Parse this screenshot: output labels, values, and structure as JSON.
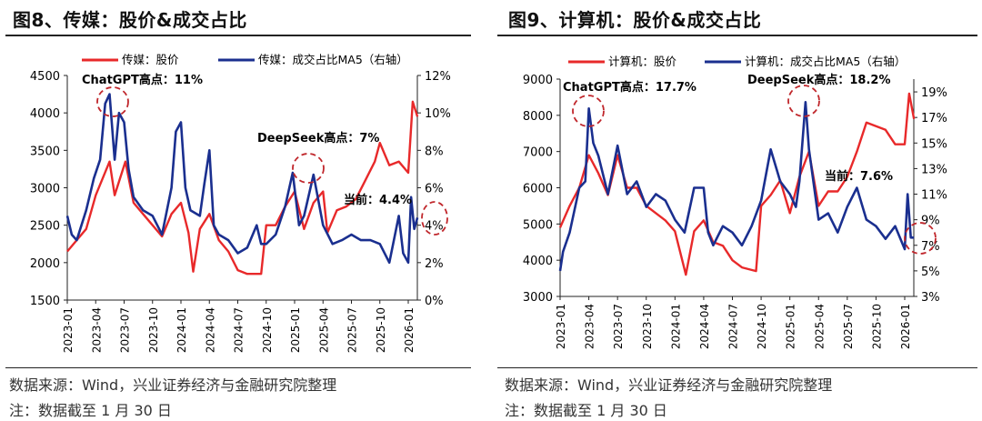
{
  "charts": [
    {
      "title": "图8、传媒：股价&成交占比",
      "source": "数据来源：Wind，兴业证券经济与金融研究院整理",
      "note": "注：数据截至 1 月 30 日"
    },
    {
      "title": "图9、计算机：股价&成交占比",
      "source": "数据来源：Wind，兴业证券经济与金融研究院整理",
      "note": "注：数据截至 1 月 30 日"
    }
  ],
  "colors": {
    "price": "#e8292a",
    "share": "#1a2f8f",
    "annotation": "#c0262b"
  },
  "chart_data": [
    {
      "type": "line",
      "x_ticks": [
        "2023-01",
        "2023-04",
        "2023-07",
        "2023-10",
        "2024-01",
        "2024-04",
        "2024-07",
        "2024-10",
        "2025-01",
        "2025-04",
        "2025-07",
        "2025-10",
        "2026-01"
      ],
      "ylim": [
        1500,
        4500
      ],
      "yticks": [
        1500,
        2000,
        2500,
        3000,
        3500,
        4000,
        4500
      ],
      "y2lim": [
        0,
        12
      ],
      "y2ticks": [
        "0%",
        "2%",
        "4%",
        "6%",
        "8%",
        "10%",
        "12%"
      ],
      "y2ticks_values": [
        0,
        2,
        4,
        6,
        8,
        10,
        12
      ],
      "grid": false,
      "legend": "top",
      "series": [
        {
          "name": "传媒：股价",
          "axis": "left",
          "color": "#e8292a",
          "x": [
            "2023-01-01",
            "2023-02-01",
            "2023-03-01",
            "2023-04-01",
            "2023-05-15",
            "2023-06-01",
            "2023-07-05",
            "2023-08-01",
            "2023-09-01",
            "2023-10-01",
            "2023-11-01",
            "2023-12-01",
            "2024-01-01",
            "2024-01-25",
            "2024-02-10",
            "2024-03-01",
            "2024-04-01",
            "2024-05-01",
            "2024-06-01",
            "2024-07-01",
            "2024-08-01",
            "2024-09-15",
            "2024-10-01",
            "2024-11-01",
            "2024-12-01",
            "2025-01-01",
            "2025-02-01",
            "2025-03-01",
            "2025-04-01",
            "2025-04-15",
            "2025-05-15",
            "2025-06-15",
            "2025-07-15",
            "2025-08-15",
            "2025-09-15",
            "2025-10-01",
            "2025-11-01",
            "2025-12-01",
            "2026-01-01",
            "2026-01-15",
            "2026-01-30"
          ],
          "values": [
            2150,
            2300,
            2450,
            2900,
            3350,
            2900,
            3350,
            2800,
            2650,
            2500,
            2350,
            2650,
            2800,
            2400,
            1880,
            2450,
            2650,
            2300,
            2150,
            1900,
            1850,
            1850,
            2500,
            2500,
            2750,
            2950,
            2450,
            2800,
            2950,
            2400,
            2700,
            2750,
            2850,
            3100,
            3350,
            3600,
            3300,
            3350,
            3200,
            4150,
            3950
          ]
        },
        {
          "name": "传媒：成交占比MA5（右轴）",
          "axis": "right",
          "color": "#1a2f8f",
          "x": [
            "2023-01-01",
            "2023-01-15",
            "2023-02-01",
            "2023-03-01",
            "2023-03-25",
            "2023-04-15",
            "2023-05-01",
            "2023-05-15",
            "2023-06-01",
            "2023-06-15",
            "2023-07-01",
            "2023-07-15",
            "2023-08-01",
            "2023-09-01",
            "2023-10-01",
            "2023-11-01",
            "2023-12-01",
            "2023-12-15",
            "2024-01-01",
            "2024-01-15",
            "2024-02-01",
            "2024-03-01",
            "2024-03-15",
            "2024-04-01",
            "2024-04-15",
            "2024-05-01",
            "2024-06-01",
            "2024-07-01",
            "2024-08-01",
            "2024-09-01",
            "2024-09-15",
            "2024-10-01",
            "2024-11-01",
            "2024-12-01",
            "2024-12-25",
            "2025-01-15",
            "2025-02-01",
            "2025-03-01",
            "2025-04-01",
            "2025-05-01",
            "2025-06-01",
            "2025-07-01",
            "2025-08-01",
            "2025-09-01",
            "2025-10-01",
            "2025-11-01",
            "2025-12-01",
            "2025-12-15",
            "2026-01-01",
            "2026-01-10",
            "2026-01-20",
            "2026-01-30"
          ],
          "values": [
            4.5,
            3.5,
            3.2,
            4.8,
            6.5,
            7.5,
            10.5,
            11,
            7.5,
            10,
            9.5,
            7,
            5.5,
            4.8,
            4.5,
            3.5,
            6,
            9,
            9.5,
            6,
            4.8,
            4.5,
            6.2,
            8,
            4,
            3.5,
            3.2,
            2.5,
            2.8,
            4,
            3,
            3,
            3.5,
            5,
            6.8,
            4,
            4.5,
            6.7,
            4,
            3,
            3.2,
            3.5,
            3.2,
            3.2,
            3,
            2,
            4.5,
            2.5,
            2,
            5.5,
            3.8,
            4.4
          ]
        }
      ],
      "annotations": [
        "ChatGPT高点：11%",
        "DeepSeek高点：7%",
        "当前：4.4%"
      ]
    },
    {
      "type": "line",
      "x_ticks": [
        "2023-01",
        "2023-04",
        "2023-07",
        "2023-10",
        "2024-01",
        "2024-04",
        "2024-07",
        "2024-10",
        "2025-01",
        "2025-04",
        "2025-07",
        "2025-10",
        "2026-01"
      ],
      "ylim": [
        3000,
        9000
      ],
      "yticks": [
        3000,
        4000,
        5000,
        6000,
        7000,
        8000,
        9000
      ],
      "y2lim": [
        3,
        20
      ],
      "y2ticks": [
        "3%",
        "5%",
        "7%",
        "9%",
        "11%",
        "13%",
        "15%",
        "17%",
        "19%"
      ],
      "y2ticks_values": [
        3,
        5,
        7,
        9,
        11,
        13,
        15,
        17,
        19
      ],
      "grid": false,
      "legend": "top",
      "series": [
        {
          "name": "计算机：股价",
          "axis": "left",
          "color": "#e8292a",
          "x": [
            "2023-01-01",
            "2023-02-01",
            "2023-03-01",
            "2023-04-01",
            "2023-05-01",
            "2023-06-01",
            "2023-07-01",
            "2023-08-01",
            "2023-09-01",
            "2023-10-01",
            "2023-11-01",
            "2023-12-01",
            "2024-01-01",
            "2024-02-05",
            "2024-03-01",
            "2024-04-01",
            "2024-05-01",
            "2024-06-01",
            "2024-07-01",
            "2024-08-01",
            "2024-09-15",
            "2024-10-01",
            "2024-11-01",
            "2024-12-01",
            "2025-01-01",
            "2025-02-01",
            "2025-03-01",
            "2025-04-01",
            "2025-05-01",
            "2025-06-01",
            "2025-07-01",
            "2025-08-01",
            "2025-09-01",
            "2025-10-01",
            "2025-11-01",
            "2025-12-01",
            "2026-01-01",
            "2026-01-15",
            "2026-01-30"
          ],
          "values": [
            4900,
            5500,
            6000,
            6900,
            6400,
            5800,
            6900,
            6000,
            6000,
            5500,
            5300,
            5100,
            4800,
            3600,
            4800,
            5100,
            4500,
            4400,
            4000,
            3800,
            3700,
            5500,
            5800,
            6200,
            5300,
            6300,
            7000,
            5500,
            5900,
            5900,
            6300,
            7000,
            7800,
            7700,
            7600,
            7200,
            7200,
            8600,
            7900
          ]
        },
        {
          "name": "计算机：成交占比MA5（右轴）",
          "axis": "right",
          "color": "#1a2f8f",
          "x": [
            "2023-01-01",
            "2023-01-10",
            "2023-02-01",
            "2023-03-01",
            "2023-03-20",
            "2023-04-01",
            "2023-04-15",
            "2023-05-01",
            "2023-06-01",
            "2023-07-01",
            "2023-08-01",
            "2023-09-01",
            "2023-10-01",
            "2023-11-01",
            "2023-12-01",
            "2024-01-01",
            "2024-02-01",
            "2024-03-01",
            "2024-04-01",
            "2024-04-15",
            "2024-05-01",
            "2024-06-01",
            "2024-07-01",
            "2024-08-01",
            "2024-09-01",
            "2024-10-01",
            "2024-11-01",
            "2024-12-01",
            "2025-01-01",
            "2025-01-20",
            "2025-02-01",
            "2025-02-20",
            "2025-03-01",
            "2025-04-01",
            "2025-05-01",
            "2025-06-01",
            "2025-07-01",
            "2025-08-01",
            "2025-09-01",
            "2025-10-01",
            "2025-11-01",
            "2025-12-01",
            "2026-01-01",
            "2026-01-10",
            "2026-01-20",
            "2026-01-30"
          ],
          "values": [
            5,
            6.5,
            8,
            11.5,
            12,
            17.7,
            15,
            14,
            11,
            14.8,
            11,
            12,
            10,
            11,
            10.5,
            9,
            8,
            11.5,
            11.5,
            8,
            7,
            8.5,
            8,
            7,
            8.5,
            10.5,
            14.5,
            12,
            11,
            10,
            12,
            18.2,
            14.5,
            9,
            9.5,
            8,
            10,
            11.5,
            9,
            8.5,
            7.5,
            8.5,
            6.7,
            11,
            7.6,
            7.6
          ]
        }
      ],
      "annotations": [
        "ChatGPT高点：17.7%",
        "DeepSeek高点：18.2%",
        "当前：7.6%"
      ]
    }
  ]
}
